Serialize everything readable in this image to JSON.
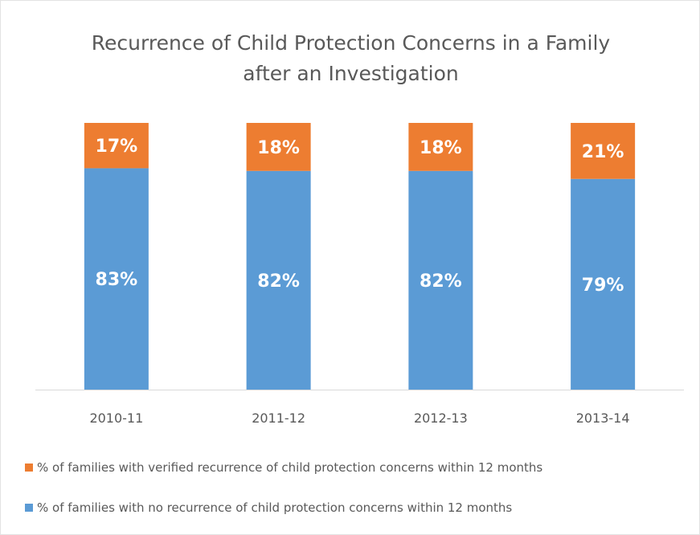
{
  "chart_data": {
    "type": "bar",
    "stacked": true,
    "title": "Recurrence of Child Protection Concerns in a Family after an Investigation",
    "title_lines": [
      "Recurrence of Child Protection Concerns in a Family",
      "after an Investigation"
    ],
    "categories": [
      "2010-11",
      "2011-12",
      "2012-13",
      "2013-14"
    ],
    "series": [
      {
        "name": "% of families with no recurrence of child protection concerns within 12 months",
        "values": [
          83,
          82,
          82,
          79
        ],
        "labels": [
          "83%",
          "82%",
          "82%",
          "79%"
        ],
        "color": "#5b9bd5"
      },
      {
        "name": "% of families with verified recurrence of child protection concerns within 12 months",
        "values": [
          17,
          18,
          18,
          21
        ],
        "labels": [
          "17%",
          "18%",
          "18%",
          "21%"
        ],
        "color": "#ed7d31"
      }
    ],
    "ylim": [
      0,
      100
    ],
    "xlabel": "",
    "ylabel": "",
    "grid": false,
    "legend_position": "bottom"
  }
}
